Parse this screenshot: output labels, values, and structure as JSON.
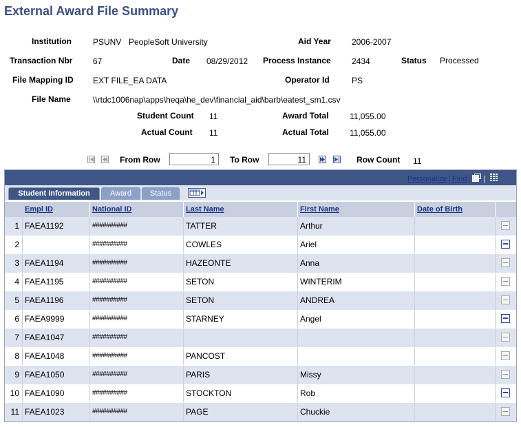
{
  "page": {
    "title": "External Award File Summary"
  },
  "summary": {
    "institution_label": "Institution",
    "institution_code": "PSUNV",
    "institution_name": "PeopleSoft University",
    "aid_year_label": "Aid Year",
    "aid_year": "2006-2007",
    "transaction_nbr_label": "Transaction Nbr",
    "transaction_nbr": "67",
    "date_label": "Date",
    "date": "08/29/2012",
    "process_instance_label": "Process Instance",
    "process_instance": "2434",
    "status_label": "Status",
    "status": "Processed",
    "file_mapping_id_label": "File Mapping ID",
    "file_mapping_id": "EXT FILE_EA DATA",
    "operator_id_label": "Operator Id",
    "operator_id": "PS",
    "file_name_label": "File Name",
    "file_name": "\\\\rtdc1006nap\\apps\\heqa\\he_dev\\financial_aid\\barb\\eatest_sm1.csv",
    "student_count_label": "Student Count",
    "student_count": "11",
    "award_total_label": "Award Total",
    "award_total": "11,055.00",
    "actual_count_label": "Actual Count",
    "actual_count": "11",
    "actual_total_label": "Actual Total",
    "actual_total": "11,055.00"
  },
  "range": {
    "from_row_label": "From Row",
    "from_row": "1",
    "to_row_label": "To Row",
    "to_row": "11",
    "row_count_label": "Row Count",
    "row_count": "11"
  },
  "grid": {
    "personalize": "Personalize",
    "separator": "|",
    "find": "Find",
    "tabs": [
      "Student Information",
      "Award",
      "Status"
    ],
    "columns": [
      "Empl ID",
      "National ID",
      "Last Name",
      "First Name",
      "Date of Birth"
    ],
    "rows": [
      {
        "num": "1",
        "empl_id": "FAEA1192",
        "national_id": "##########",
        "last_name": "TATTER",
        "first_name": "Arthur",
        "dob": "",
        "delete_active": false
      },
      {
        "num": "2",
        "empl_id": "",
        "national_id": "##########",
        "last_name": "COWLES",
        "first_name": "Ariel",
        "dob": "",
        "delete_active": true
      },
      {
        "num": "3",
        "empl_id": "FAEA1194",
        "national_id": "##########",
        "last_name": "HAZEONTE",
        "first_name": "Anna",
        "dob": "",
        "delete_active": false
      },
      {
        "num": "4",
        "empl_id": "FAEA1195",
        "national_id": "##########",
        "last_name": "SETON",
        "first_name": "WINTERIM",
        "dob": "",
        "delete_active": false
      },
      {
        "num": "5",
        "empl_id": "FAEA1196",
        "national_id": "##########",
        "last_name": "SETON",
        "first_name": "ANDREA",
        "dob": "",
        "delete_active": false
      },
      {
        "num": "6",
        "empl_id": "FAEA9999",
        "national_id": "##########",
        "last_name": "STARNEY",
        "first_name": "Angel",
        "dob": "",
        "delete_active": true
      },
      {
        "num": "7",
        "empl_id": "FAEA1047",
        "national_id": "##########",
        "last_name": "",
        "first_name": "",
        "dob": "",
        "delete_active": false
      },
      {
        "num": "8",
        "empl_id": "FAEA1048",
        "national_id": "##########",
        "last_name": "PANCOST",
        "first_name": "",
        "dob": "",
        "delete_active": false
      },
      {
        "num": "9",
        "empl_id": "FAEA1050",
        "national_id": "##########",
        "last_name": "PARIS",
        "first_name": "Missy",
        "dob": "",
        "delete_active": false
      },
      {
        "num": "10",
        "empl_id": "FAEA1090",
        "national_id": "##########",
        "last_name": "STOCKTON",
        "first_name": "Rob",
        "dob": "",
        "delete_active": true
      },
      {
        "num": "11",
        "empl_id": "FAEA1023",
        "national_id": "##########",
        "last_name": "PAGE",
        "first_name": "Chuckie",
        "dob": "",
        "delete_active": false
      }
    ]
  }
}
